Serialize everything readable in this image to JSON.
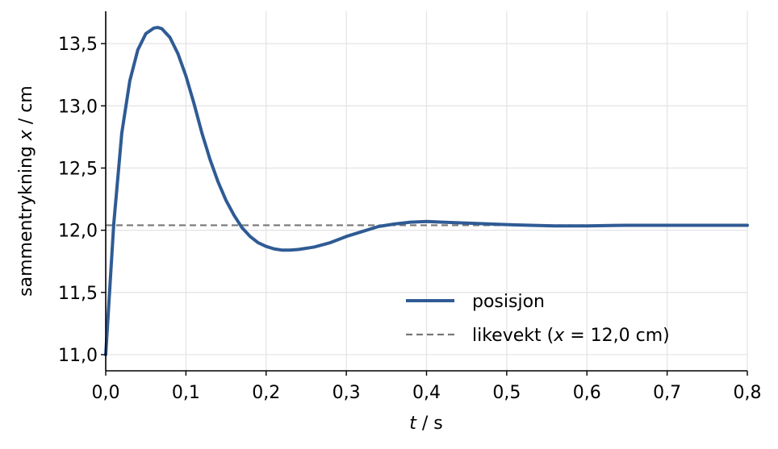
{
  "chart_data": {
    "type": "line",
    "xlabel_var": "t",
    "xlabel_unit": " / s",
    "ylabel_text": "sammentrykning ",
    "ylabel_var": "x",
    "ylabel_unit": " / cm",
    "xlim": [
      0,
      0.8
    ],
    "ylim": [
      10.87,
      13.76
    ],
    "x_ticks": [
      0,
      0.1,
      0.2,
      0.3,
      0.4,
      0.5,
      0.6,
      0.7,
      0.8
    ],
    "x_tick_labels": [
      "0,0",
      "0,1",
      "0,2",
      "0,3",
      "0,4",
      "0,5",
      "0,6",
      "0,7",
      "0,8"
    ],
    "y_ticks": [
      11.0,
      11.5,
      12.0,
      12.5,
      13.0,
      13.5
    ],
    "y_tick_labels": [
      "11,0",
      "11,5",
      "12,0",
      "12,5",
      "13,0",
      "13,5"
    ],
    "grid": true,
    "legend_position": "lower-right",
    "series": [
      {
        "name": "posisjon",
        "color": "#2f5b94",
        "style": "solid",
        "x": [
          0,
          0.01,
          0.02,
          0.03,
          0.04,
          0.05,
          0.06,
          0.065,
          0.07,
          0.08,
          0.09,
          0.1,
          0.11,
          0.12,
          0.13,
          0.14,
          0.15,
          0.16,
          0.17,
          0.18,
          0.19,
          0.2,
          0.21,
          0.22,
          0.23,
          0.24,
          0.25,
          0.26,
          0.28,
          0.3,
          0.32,
          0.34,
          0.36,
          0.38,
          0.4,
          0.42,
          0.44,
          0.46,
          0.48,
          0.5,
          0.53,
          0.56,
          0.6,
          0.65,
          0.7,
          0.75,
          0.8
        ],
        "y": [
          11.0,
          12.05,
          12.78,
          13.2,
          13.45,
          13.58,
          13.625,
          13.63,
          13.62,
          13.55,
          13.42,
          13.24,
          13.02,
          12.78,
          12.57,
          12.39,
          12.24,
          12.12,
          12.02,
          11.95,
          11.9,
          11.87,
          11.85,
          11.84,
          11.84,
          11.845,
          11.855,
          11.865,
          11.9,
          11.95,
          11.99,
          12.03,
          12.05,
          12.065,
          12.07,
          12.065,
          12.06,
          12.055,
          12.05,
          12.045,
          12.04,
          12.035,
          12.035,
          12.04,
          12.04,
          12.04,
          12.04
        ]
      },
      {
        "name": "likevekt (",
        "name_var": "x",
        "name_rest": " = 12,0 cm)",
        "color": "#777777",
        "style": "dashed",
        "x": [
          0,
          0.8
        ],
        "y": [
          12.04,
          12.04
        ]
      }
    ]
  }
}
